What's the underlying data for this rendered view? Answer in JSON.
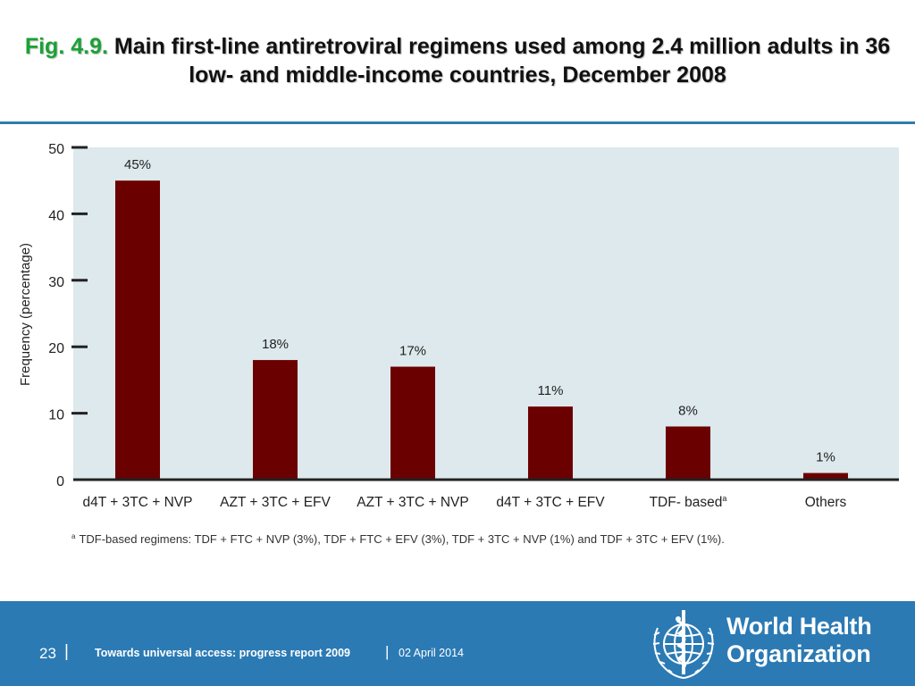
{
  "slide": {
    "title_prefix": "Fig. 4.9.",
    "title_main": "Main first-line antiretroviral regimens used among 2.4 million adults in 36 low- and middle-income countries, December 2008"
  },
  "chart_data": {
    "type": "bar",
    "ylabel": "Frequency (percentage)",
    "xlabel": "",
    "ylim": [
      0,
      50
    ],
    "yticks": [
      0,
      10,
      20,
      30,
      40,
      50
    ],
    "categories": [
      "d4T + 3TC + NVP",
      "AZT + 3TC + EFV",
      "AZT + 3TC + NVP",
      "d4T + 3TC + EFV",
      "TDF- based",
      "Others"
    ],
    "category_superscripts": [
      "",
      "",
      "",
      "",
      "a",
      ""
    ],
    "values": [
      45,
      18,
      17,
      11,
      8,
      1
    ],
    "data_labels": [
      "45%",
      "18%",
      "17%",
      "11%",
      "8%",
      "1%"
    ],
    "footnote_marker": "a",
    "footnote": "TDF-based regimens: TDF + FTC + NVP (3%), TDF + FTC + EFV (3%), TDF + 3TC + NVP (1%) and TDF + 3TC + EFV (1%).",
    "grid": false,
    "legend": "none",
    "colors": {
      "bar": "#6b0000",
      "plot_bg": "#dde9ec",
      "axis": "#222222"
    }
  },
  "footer": {
    "page_number": "23",
    "separator": "|",
    "report_title": "Towards universal access: progress report 2009",
    "date": "02 April 2014",
    "org_line1": "World Health",
    "org_line2": "Organization",
    "emblem_icon": "who-emblem-icon",
    "colors": {
      "band": "#2b7ab4",
      "text": "#ffffff"
    }
  }
}
